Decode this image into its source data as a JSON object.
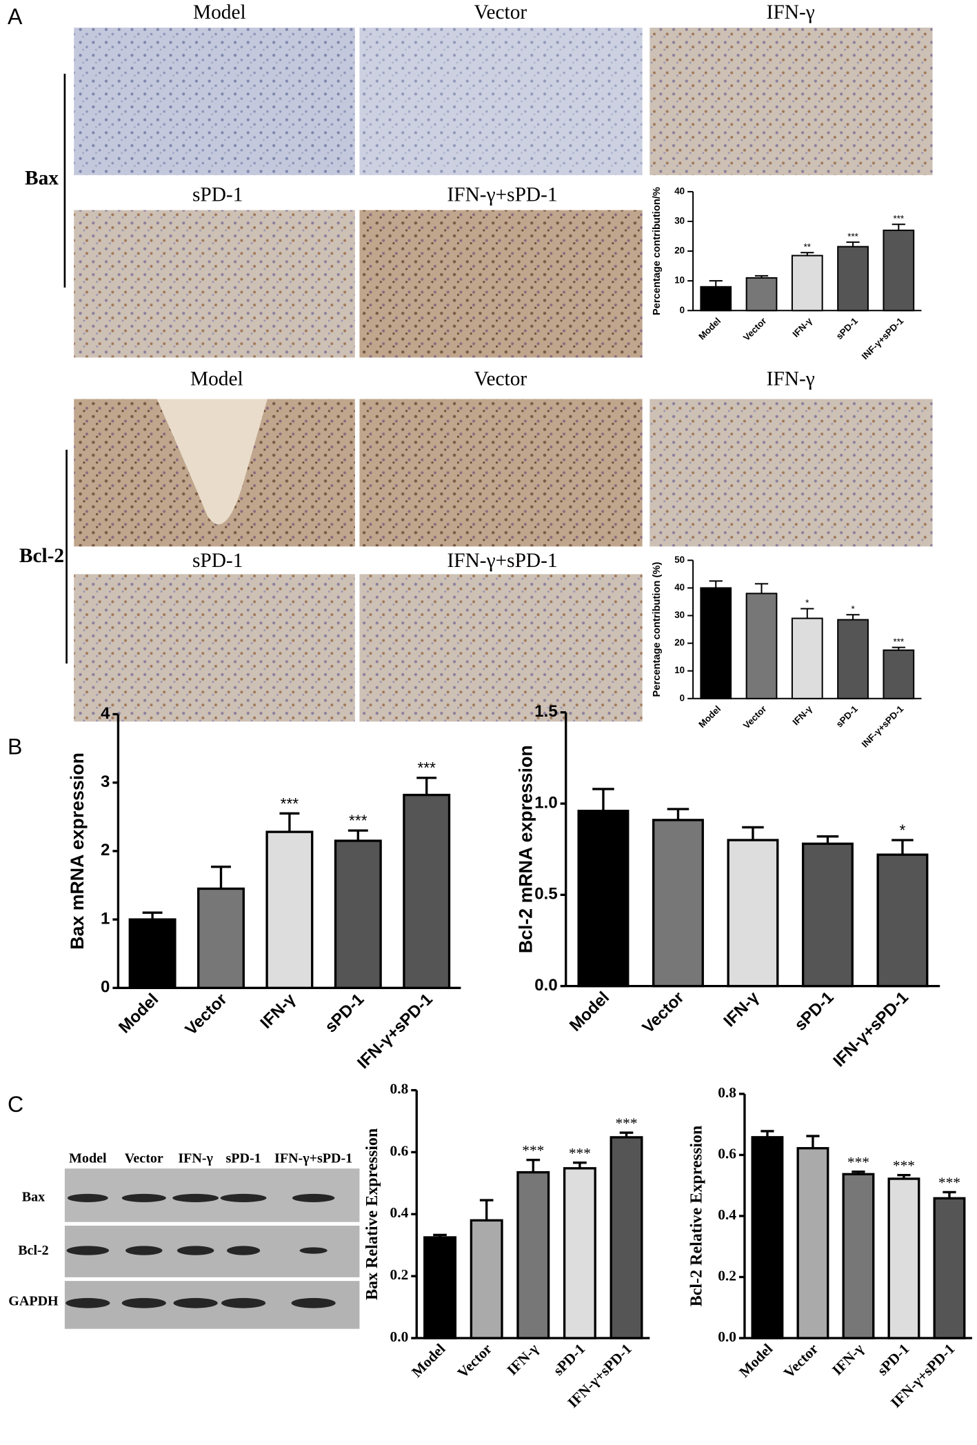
{
  "figure": {
    "panel_labels": [
      "A",
      "B",
      "C"
    ],
    "ihc": {
      "bax_label": "Bax",
      "bcl2_label": "Bcl-2",
      "bax_titles": [
        "Model",
        "Vector",
        "IFN-γ",
        "sPD-1",
        "IFN-γ+sPD-1"
      ],
      "bcl2_titles": [
        "Model",
        "Vector",
        "IFN-γ",
        "sPD-1",
        "IFN-γ+sPD-1"
      ]
    },
    "blot": {
      "lanes": [
        "Model",
        "Vector",
        "IFN-γ",
        "sPD-1",
        "IFN-γ+sPD-1"
      ],
      "rows": [
        "Bax",
        "Bcl-2",
        "GAPDH"
      ]
    }
  },
  "chart_data": [
    {
      "type": "bar",
      "y_label": "Percentage contribution/%",
      "categories": [
        "Model",
        "Vector",
        "IFN-γ",
        "sPD-1",
        "INF-γ+sPD-1"
      ],
      "values": [
        8,
        11,
        18.5,
        21.5,
        27
      ],
      "errors": [
        2,
        0.7,
        1,
        1.5,
        2
      ],
      "annotations": [
        null,
        null,
        "**",
        "***",
        "***"
      ],
      "colors": [
        "#000000",
        "#777777",
        "#dddddd",
        "#555555",
        "#555555"
      ],
      "ylim": [
        0,
        40
      ],
      "yticks": [
        0,
        10,
        20,
        30,
        40
      ]
    },
    {
      "type": "bar",
      "y_label": "Percentage contribution (%)",
      "categories": [
        "Model",
        "Vector",
        "IFN-γ",
        "sPD-1",
        "INF-γ+sPD-1"
      ],
      "values": [
        40,
        38,
        29,
        28.5,
        17.5
      ],
      "errors": [
        2.5,
        3.5,
        3.5,
        1.8,
        1
      ],
      "annotations": [
        null,
        null,
        "*",
        "*",
        "***"
      ],
      "colors": [
        "#000000",
        "#777777",
        "#dddddd",
        "#555555",
        "#555555"
      ],
      "ylim": [
        0,
        50
      ],
      "yticks": [
        0,
        10,
        20,
        30,
        40,
        50
      ]
    },
    {
      "type": "bar",
      "y_label": "Bax mRNA expression",
      "categories": [
        "Model",
        "Vector",
        "IFN-γ",
        "sPD-1",
        "IFN-γ+sPD-1"
      ],
      "values": [
        1.0,
        1.45,
        2.28,
        2.15,
        2.82
      ],
      "errors": [
        0.1,
        0.32,
        0.27,
        0.15,
        0.25
      ],
      "annotations": [
        null,
        null,
        "***",
        "***",
        "***"
      ],
      "colors": [
        "#000000",
        "#777777",
        "#dddddd",
        "#555555",
        "#555555"
      ],
      "ylim": [
        0,
        4
      ],
      "yticks": [
        0,
        1,
        2,
        3,
        4
      ]
    },
    {
      "type": "bar",
      "y_label": "Bcl-2 mRNA expression",
      "categories": [
        "Model",
        "Vector",
        "IFN-γ",
        "sPD-1",
        "IFN-γ+sPD-1"
      ],
      "values": [
        0.96,
        0.91,
        0.8,
        0.78,
        0.72
      ],
      "errors": [
        0.12,
        0.06,
        0.07,
        0.04,
        0.08
      ],
      "annotations": [
        null,
        null,
        null,
        null,
        "*"
      ],
      "colors": [
        "#000000",
        "#777777",
        "#dddddd",
        "#555555",
        "#555555"
      ],
      "ylim": [
        0,
        1.5
      ],
      "yticks": [
        {
          "value": 0,
          "label": "0.0"
        },
        0.5,
        {
          "value": 1,
          "label": "1.0"
        },
        1.5
      ]
    },
    {
      "type": "bar",
      "y_label": "Bax Relative Expression",
      "categories": [
        "Model",
        "Vector",
        "IFN-γ",
        "sPD-1",
        "IFN-γ+sPD-1"
      ],
      "values": [
        0.325,
        0.38,
        0.535,
        0.548,
        0.648
      ],
      "errors": [
        0.008,
        0.065,
        0.04,
        0.018,
        0.015
      ],
      "annotations": [
        null,
        null,
        "***",
        "***",
        "***"
      ],
      "colors": [
        "#000000",
        "#aaaaaa",
        "#777777",
        "#dddddd",
        "#555555"
      ],
      "ylim": [
        0,
        0.8
      ],
      "yticks": [
        {
          "value": 0,
          "label": "0.0"
        },
        0.2,
        0.4,
        0.6,
        0.8
      ]
    },
    {
      "type": "bar",
      "y_label": "Bcl-2 Relative Expression",
      "categories": [
        "Model",
        "Vector",
        "IFN-γ",
        "sPD-1",
        "IFN-γ+sPD-1"
      ],
      "values": [
        0.658,
        0.622,
        0.537,
        0.522,
        0.458
      ],
      "errors": [
        0.02,
        0.04,
        0.008,
        0.012,
        0.02
      ],
      "annotations": [
        null,
        null,
        "***",
        "***",
        "***"
      ],
      "colors": [
        "#000000",
        "#aaaaaa",
        "#777777",
        "#dddddd",
        "#555555"
      ],
      "ylim": [
        0,
        0.8
      ],
      "yticks": [
        {
          "value": 0,
          "label": "0.0"
        },
        0.2,
        0.4,
        0.6,
        0.8
      ]
    }
  ]
}
